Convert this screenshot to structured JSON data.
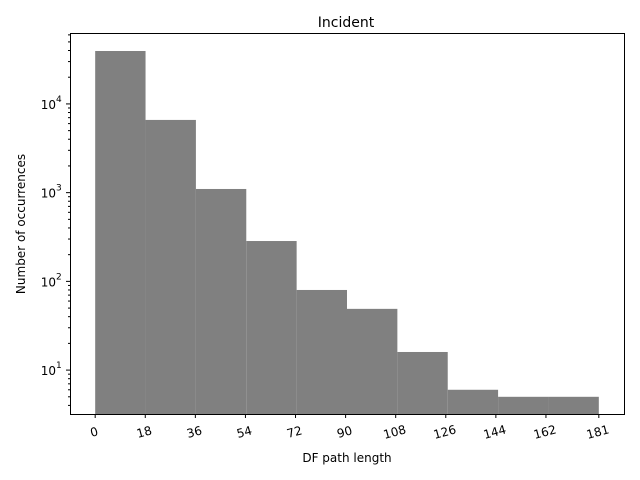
{
  "chart_data": {
    "type": "bar",
    "title": "Incident",
    "xlabel": "DF path length",
    "ylabel": "Number of occurrences",
    "yscale": "log",
    "ylim": [
      3.2,
      63000
    ],
    "xlim": [
      -9.05,
      190.05
    ],
    "bin_edges": [
      0,
      18.1,
      36.2,
      54.3,
      72.4,
      90.5,
      108.6,
      126.7,
      144.8,
      162.9,
      181
    ],
    "values": [
      39500,
      6600,
      1100,
      285,
      80,
      49,
      16,
      6,
      5,
      5
    ],
    "bar_color": "#808080",
    "x_ticks": [
      0,
      18,
      36,
      54,
      72,
      90,
      108,
      126,
      144,
      162,
      181
    ],
    "x_tick_labels": [
      "0",
      "18",
      "36",
      "54",
      "72",
      "90",
      "108",
      "126",
      "144",
      "162",
      "181"
    ],
    "x_tick_rotation": 15,
    "y_ticks": [
      {
        "base": "10",
        "exp": "1",
        "value": 10
      },
      {
        "base": "10",
        "exp": "2",
        "value": 100
      },
      {
        "base": "10",
        "exp": "3",
        "value": 1000
      },
      {
        "base": "10",
        "exp": "4",
        "value": 10000
      }
    ],
    "grid": false
  }
}
